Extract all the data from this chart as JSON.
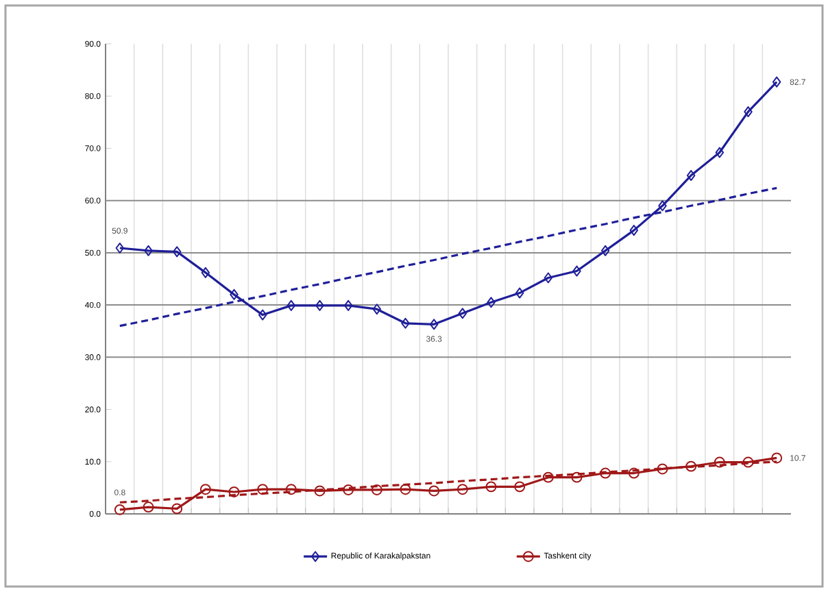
{
  "chart_data": {
    "type": "line",
    "categories": [
      null,
      null,
      null,
      null,
      null,
      null,
      null,
      null,
      null,
      null,
      null,
      null,
      null,
      null,
      null,
      null,
      null,
      null,
      null,
      null,
      null,
      null,
      null,
      null
    ],
    "series": [
      {
        "name": "Republic of Karakalpakstan",
        "color": "#1f1f99",
        "marker": "diamond",
        "line_style": "solid",
        "values": [
          50.9,
          50.4,
          50.2,
          46.2,
          42.0,
          38.1,
          39.9,
          39.9,
          39.9,
          39.2,
          36.5,
          36.3,
          38.4,
          40.5,
          42.3,
          45.2,
          46.5,
          50.4,
          54.3,
          59.0,
          64.8,
          69.2,
          77.0,
          82.7
        ],
        "value_labels": [
          "50.9",
          null,
          null,
          null,
          null,
          null,
          null,
          null,
          null,
          null,
          null,
          "36.3",
          null,
          null,
          null,
          null,
          null,
          null,
          null,
          null,
          null,
          null,
          null,
          "82.7"
        ]
      },
      {
        "name": "Tashkent city",
        "color": "#a01818",
        "marker": "circle",
        "line_style": "solid",
        "values": [
          0.8,
          1.3,
          1.0,
          4.7,
          4.2,
          4.7,
          4.7,
          4.4,
          4.6,
          4.6,
          4.7,
          4.4,
          4.7,
          5.2,
          5.2,
          7.0,
          7.0,
          7.8,
          7.8,
          8.6,
          9.1,
          9.9,
          9.9,
          10.7
        ],
        "value_labels": [
          "0.8",
          null,
          null,
          null,
          null,
          null,
          null,
          null,
          null,
          null,
          null,
          null,
          null,
          null,
          null,
          null,
          null,
          null,
          null,
          null,
          null,
          null,
          null,
          "10.7"
        ]
      },
      {
        "type": "line",
        "color": "#1f1f99",
        "marker": "none",
        "line_style": "dashed",
        "values": [
          36.0,
          37.1,
          38.3,
          39.4,
          40.6,
          41.7,
          42.9,
          44.0,
          45.2,
          46.3,
          47.5,
          48.6,
          49.8,
          50.9,
          52.1,
          53.2,
          54.4,
          55.5,
          56.7,
          57.8,
          59.0,
          60.1,
          61.3,
          62.4
        ]
      },
      {
        "type": "line",
        "color": "#a01818",
        "marker": "none",
        "line_style": "dashed",
        "values": [
          2.2,
          2.5,
          2.9,
          3.2,
          3.6,
          3.9,
          4.2,
          4.6,
          4.9,
          5.3,
          5.6,
          5.9,
          6.3,
          6.6,
          7.0,
          7.3,
          7.6,
          8.0,
          8.3,
          8.7,
          9.0,
          9.3,
          9.7,
          10.0
        ]
      }
    ],
    "ylim": [
      0,
      90
    ],
    "yticks": [
      {
        "value": 0,
        "label": "0.0"
      },
      {
        "value": 10,
        "label": "10.0"
      },
      {
        "value": 20,
        "label": "20.0"
      },
      {
        "value": 30,
        "label": "30.0"
      },
      {
        "value": 40,
        "label": "40.0"
      },
      {
        "value": 50,
        "label": "50.0"
      },
      {
        "value": 60,
        "label": "60.0"
      },
      {
        "value": 70,
        "label": "70.0"
      },
      {
        "value": 80,
        "label": "80.0"
      },
      {
        "value": 90,
        "label": "90.0"
      }
    ],
    "ref_lines": [
      {
        "axis": "y",
        "value": 30,
        "color": "#8c8c8c"
      },
      {
        "axis": "y",
        "value": 40,
        "color": "#8c8c8c"
      },
      {
        "axis": "y",
        "value": 50,
        "color": "#8c8c8c"
      },
      {
        "axis": "y",
        "value": 60,
        "color": "#8c8c8c"
      }
    ],
    "grid": "x",
    "legend": "bottom"
  }
}
